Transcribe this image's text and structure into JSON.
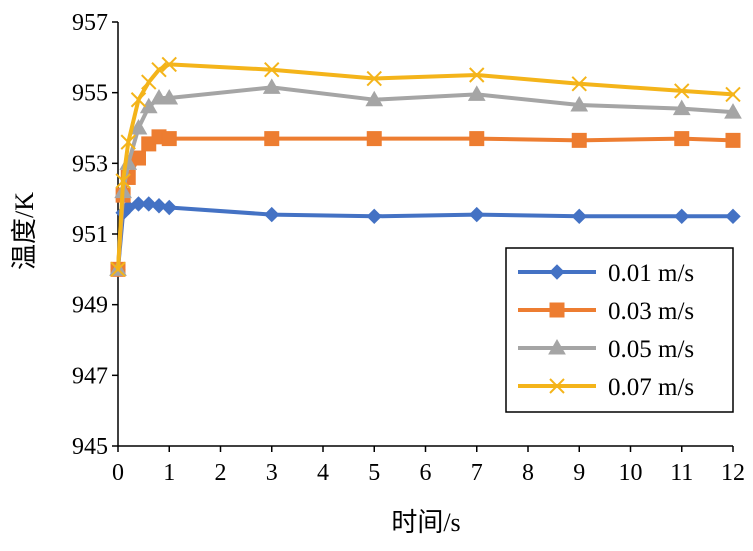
{
  "chart_data": {
    "type": "line",
    "title": "",
    "xlabel": "时间/s",
    "ylabel": "温度/K",
    "xlim": [
      0,
      12
    ],
    "ylim": [
      945,
      957
    ],
    "xticks": [
      0,
      1,
      2,
      3,
      4,
      5,
      6,
      7,
      8,
      9,
      10,
      11,
      12
    ],
    "yticks": [
      945,
      947,
      949,
      951,
      953,
      955,
      957
    ],
    "grid": false,
    "legend_position": "bottom-right",
    "series": [
      {
        "name": "0.01 m/s",
        "color": "#4472C4",
        "marker": "diamond",
        "x": [
          0,
          0.1,
          0.2,
          0.4,
          0.6,
          0.8,
          1,
          3,
          5,
          7,
          9,
          11,
          12
        ],
        "y": [
          950.0,
          951.6,
          951.75,
          951.85,
          951.85,
          951.8,
          951.75,
          951.55,
          951.5,
          951.55,
          951.5,
          951.5,
          951.5
        ]
      },
      {
        "name": "0.03 m/s",
        "color": "#ED7D31",
        "marker": "square",
        "x": [
          0,
          0.1,
          0.2,
          0.4,
          0.6,
          0.8,
          1,
          3,
          5,
          7,
          9,
          11,
          12
        ],
        "y": [
          950.0,
          952.1,
          952.6,
          953.15,
          953.55,
          953.75,
          953.7,
          953.7,
          953.7,
          953.7,
          953.65,
          953.7,
          953.65
        ]
      },
      {
        "name": "0.05 m/s",
        "color": "#A5A5A5",
        "marker": "triangle",
        "x": [
          0,
          0.1,
          0.2,
          0.4,
          0.6,
          0.8,
          1,
          3,
          5,
          7,
          9,
          11,
          12
        ],
        "y": [
          950.0,
          952.2,
          953.0,
          954.0,
          954.6,
          954.85,
          954.85,
          955.15,
          954.8,
          954.95,
          954.65,
          954.55,
          954.45
        ]
      },
      {
        "name": "0.07 m/s",
        "color": "#F4B41A",
        "marker": "x",
        "x": [
          0,
          0.1,
          0.2,
          0.4,
          0.6,
          0.8,
          1,
          3,
          5,
          7,
          9,
          11,
          12
        ],
        "y": [
          950.0,
          952.5,
          953.6,
          954.8,
          955.3,
          955.65,
          955.8,
          955.65,
          955.4,
          955.5,
          955.25,
          955.05,
          954.95
        ]
      }
    ]
  }
}
